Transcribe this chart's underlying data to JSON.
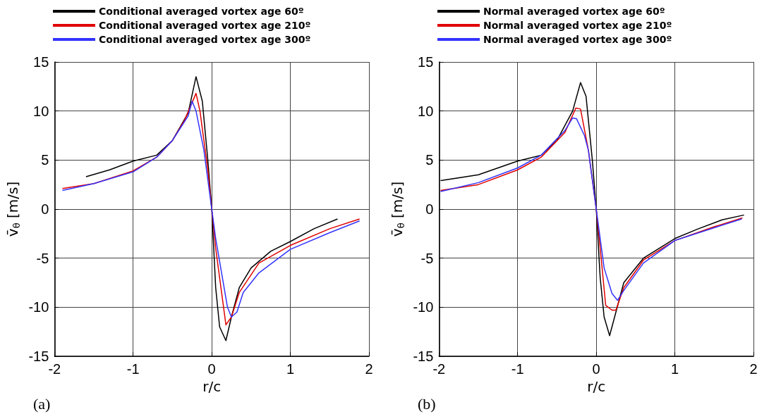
{
  "chart_data": [
    {
      "type": "line",
      "xlabel": "r/c",
      "ylabel": "v̄$_{θ}$ [m/s]",
      "xlim": [
        -2,
        2
      ],
      "xticks": [
        -2,
        -1,
        0,
        1,
        2
      ],
      "ylim": [
        -15,
        15
      ],
      "yticks": [
        -15,
        -10,
        -5,
        0,
        5,
        10,
        15
      ],
      "grid": true,
      "legend": "top",
      "line_style": "solid",
      "marker": "none",
      "annotations": [
        "(a)"
      ],
      "series": [
        {
          "name": "Conditional averaged vortex age 60º",
          "color": "#000000",
          "x": [
            -1.6,
            -1.3,
            -1,
            -0.7,
            -0.5,
            -0.3,
            -0.2,
            -0.12,
            -0.05,
            0,
            0.05,
            0.1,
            0.18,
            0.25,
            0.35,
            0.5,
            0.75,
            1,
            1.3,
            1.6
          ],
          "values": [
            3.3,
            4,
            4.9,
            5.5,
            7,
            9.8,
            13.5,
            11,
            5,
            0,
            -8,
            -12,
            -13.4,
            -11,
            -8,
            -6,
            -4.3,
            -3.3,
            -2,
            -1
          ]
        },
        {
          "name": "Conditional averaged vortex age 210º",
          "color": "#e00000",
          "x": [
            -1.9,
            -1.5,
            -1,
            -0.7,
            -0.5,
            -0.35,
            -0.2,
            -0.15,
            -0.05,
            0,
            0.05,
            0.18,
            0.25,
            0.35,
            0.6,
            1,
            1.5,
            1.88
          ],
          "values": [
            2.1,
            2.6,
            3.9,
            5.3,
            7,
            9,
            11.8,
            10,
            4,
            0,
            -4,
            -11.8,
            -11,
            -8.5,
            -5.5,
            -3.7,
            -2,
            -1
          ]
        },
        {
          "name": "Conditional averaged vortex age 300º",
          "color": "#3333ff",
          "x": [
            -1.9,
            -1.5,
            -1,
            -0.7,
            -0.5,
            -0.3,
            -0.25,
            -0.2,
            -0.1,
            0,
            0.05,
            0.2,
            0.25,
            0.32,
            0.4,
            0.6,
            1,
            1.5,
            1.88
          ],
          "values": [
            1.9,
            2.6,
            3.8,
            5.3,
            7,
            9.5,
            11,
            10,
            6,
            0,
            -3,
            -10,
            -11,
            -10.5,
            -8.5,
            -6.5,
            -4.1,
            -2.4,
            -1.2
          ]
        }
      ]
    },
    {
      "type": "line",
      "xlabel": "r/c",
      "ylabel": "v̄$_{θ}$ [m/s]",
      "xlim": [
        -2,
        2
      ],
      "xticks": [
        -2,
        -1,
        0,
        1,
        2
      ],
      "ylim": [
        -15,
        15
      ],
      "yticks": [
        -15,
        -10,
        -5,
        0,
        5,
        10,
        15
      ],
      "grid": true,
      "legend": "top",
      "line_style": "solid",
      "marker": "none",
      "annotations": [
        "(b)"
      ],
      "series": [
        {
          "name": "Normal averaged vortex age 60º",
          "color": "#000000",
          "x": [
            -1.98,
            -1.5,
            -1,
            -0.7,
            -0.5,
            -0.3,
            -0.2,
            -0.13,
            -0.05,
            0,
            0.05,
            0.1,
            0.17,
            0.25,
            0.35,
            0.6,
            1,
            1.3,
            1.6,
            1.88
          ],
          "values": [
            2.9,
            3.5,
            4.9,
            5.5,
            7,
            10,
            12.9,
            11.5,
            5,
            0,
            -7,
            -11,
            -12.9,
            -10.5,
            -7.5,
            -5,
            -3,
            -2,
            -1.1,
            -0.6
          ]
        },
        {
          "name": "Normal averaged vortex age 210º",
          "color": "#e00000",
          "x": [
            -1.98,
            -1.5,
            -1,
            -0.7,
            -0.4,
            -0.26,
            -0.2,
            -0.1,
            0,
            0.05,
            0.12,
            0.2,
            0.25,
            0.35,
            0.6,
            1,
            1.5,
            1.86
          ],
          "values": [
            1.9,
            2.5,
            4,
            5.3,
            7.8,
            10.3,
            10.2,
            6,
            0,
            -4,
            -9.8,
            -10.3,
            -10.3,
            -8,
            -5.2,
            -3.2,
            -1.8,
            -0.9
          ]
        },
        {
          "name": "Normal averaged vortex age 300º",
          "color": "#3333ff",
          "x": [
            -1.98,
            -1.5,
            -1,
            -0.7,
            -0.4,
            -0.3,
            -0.25,
            -0.15,
            -0.1,
            0,
            0.05,
            0.1,
            0.2,
            0.27,
            0.35,
            0.6,
            1,
            1.5,
            1.85
          ],
          "values": [
            1.8,
            2.7,
            4.2,
            5.5,
            8,
            9.3,
            9.2,
            7.5,
            6,
            0,
            -3,
            -6,
            -8.6,
            -9.3,
            -8.3,
            -5.5,
            -3.2,
            -1.9,
            -1
          ]
        }
      ]
    }
  ]
}
